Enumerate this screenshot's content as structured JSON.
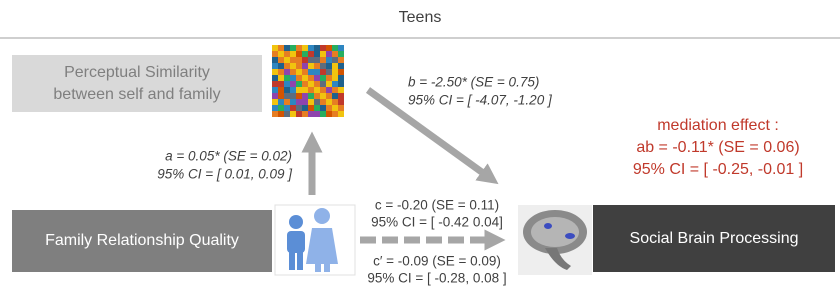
{
  "title": "Teens",
  "nodes": {
    "mediator": {
      "label": [
        "Perceptual Similarity",
        "between self and family"
      ]
    },
    "predictor": {
      "label": "Family Relationship Quality"
    },
    "outcome": {
      "label": "Social Brain Processing"
    }
  },
  "paths": {
    "a": [
      "a = 0.05* (SE = 0.02)",
      "95% CI = [ 0.01, 0.09 ]"
    ],
    "b": [
      "b = -2.50* (SE = 0.75)",
      "95% CI = [ -4.07, -1.20 ]"
    ],
    "c": [
      "c = -0.20 (SE = 0.11)",
      "95% CI = [ -0.42 0.04]"
    ],
    "c_prime": [
      "c′ = -0.09 (SE = 0.09)",
      "95% CI = [ -0.28, 0.08 ]"
    ]
  },
  "mediation": [
    "mediation effect :",
    "ab = -0.11* (SE = 0.06)",
    "95% CI = [ -0.25, -0.01 ]"
  ]
}
